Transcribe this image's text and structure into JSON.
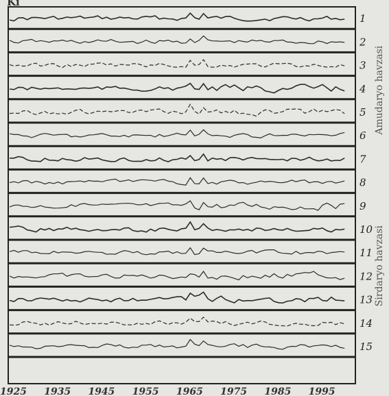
{
  "header_label": "Ki",
  "chart_data": {
    "type": "line",
    "title": "",
    "xlabel": "",
    "ylabel": "",
    "x_ticks": [
      1925,
      1935,
      1945,
      1955,
      1965,
      1975,
      1985,
      1995
    ],
    "xlim": [
      1925,
      2003
    ],
    "rows": [
      {
        "num": "1"
      },
      {
        "num": "2"
      },
      {
        "num": "3"
      },
      {
        "num": "4"
      },
      {
        "num": "5"
      },
      {
        "num": "6"
      },
      {
        "num": "7"
      },
      {
        "num": "8"
      },
      {
        "num": "9"
      },
      {
        "num": "10"
      },
      {
        "num": "11"
      },
      {
        "num": "12"
      },
      {
        "num": "13"
      },
      {
        "num": "14"
      },
      {
        "num": "15"
      }
    ],
    "groups": [
      {
        "label": "Amudaryo havzasi",
        "rows": [
          1,
          7
        ]
      },
      {
        "label": "Sirdaryo havzasi",
        "rows": [
          8,
          15
        ]
      }
    ],
    "colors": {
      "line": "#2a2a2a",
      "frame": "#222222",
      "background": "#e6e6e2"
    }
  }
}
